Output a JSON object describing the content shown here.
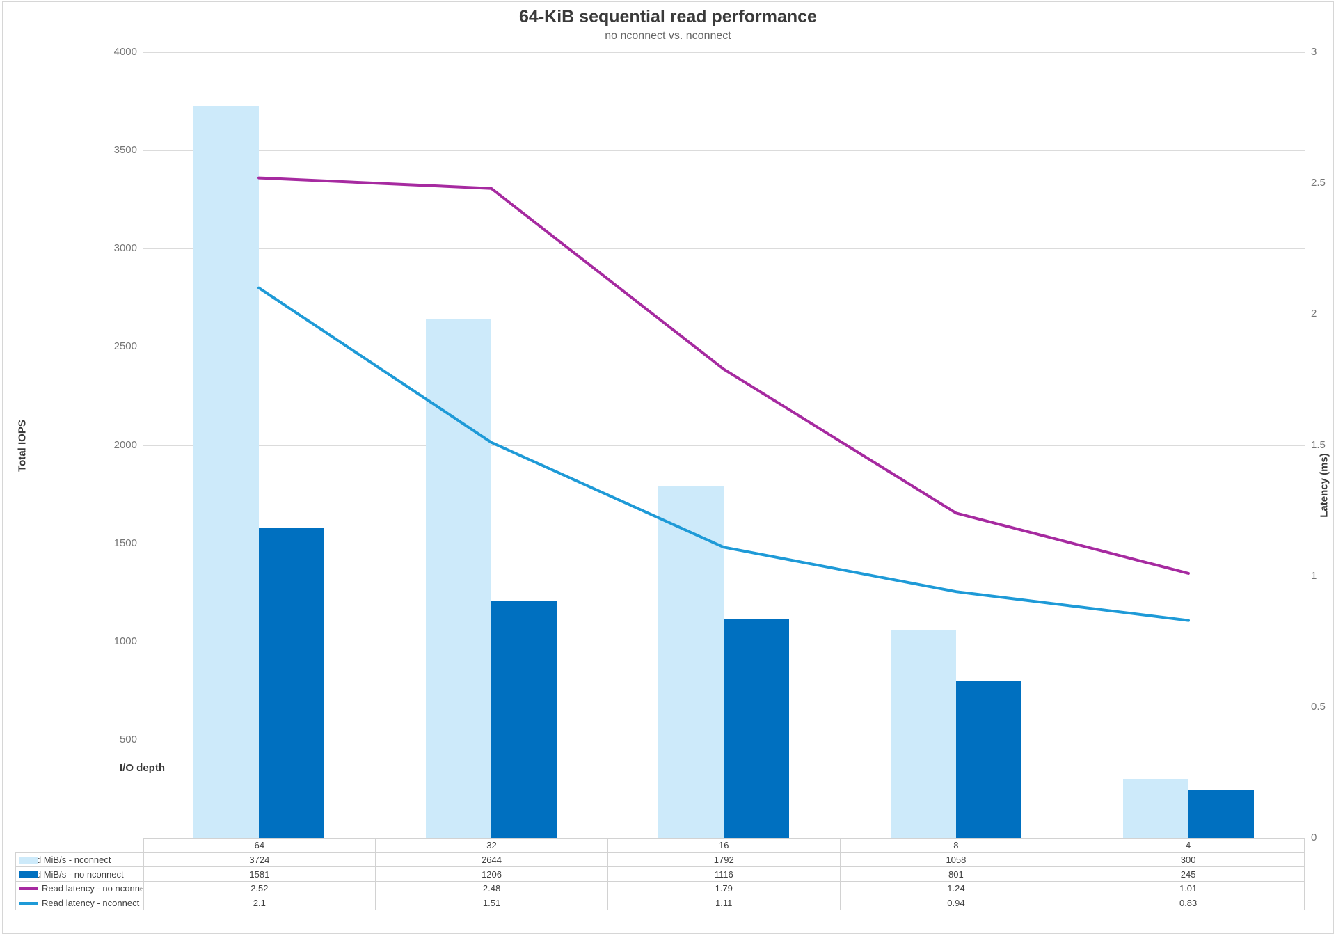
{
  "title": "64-KiB sequential read performance",
  "subtitle": "no nconnect vs. nconnect",
  "left_axis": {
    "title": "Total IOPS",
    "ticks": [
      "4000",
      "3500",
      "3000",
      "2500",
      "2000",
      "1500",
      "1000",
      "500"
    ],
    "min": 0,
    "max": 4000
  },
  "right_axis": {
    "title": "Latency (ms)",
    "ticks": [
      "3",
      "2.5",
      "2",
      "1.5",
      "1",
      "0.5",
      "0"
    ],
    "min": 0,
    "max": 3
  },
  "x_axis": {
    "title": "I/O depth"
  },
  "colors": {
    "bar_nconnect": "#cdeafa",
    "bar_no_nconnect": "#0070c0",
    "line_no_nconnect": "#a62aa0",
    "line_nconnect": "#1e9ad7",
    "gridline": "#dbdbdb",
    "table_border": "#d2d2d2",
    "text": "#404040"
  },
  "chart_data": {
    "type": "combo-bar-line",
    "title": "64-KiB sequential read performance",
    "subtitle": "no nconnect vs. nconnect",
    "xlabel": "I/O depth",
    "ylabel_left": "Total IOPS",
    "ylabel_right": "Latency (ms)",
    "left_ylim": [
      0,
      4000
    ],
    "right_ylim": [
      0,
      3
    ],
    "grid": true,
    "legend_position": "bottom-table",
    "categories": [
      "64",
      "32",
      "16",
      "8",
      "4"
    ],
    "series": [
      {
        "name": "Read MiB/s - nconnect",
        "type": "bar",
        "axis": "left",
        "color": "#cdeafa",
        "values": [
          3724,
          2644,
          1792,
          1058,
          300
        ]
      },
      {
        "name": "Read MiB/s - no nconnect",
        "type": "bar",
        "axis": "left",
        "color": "#0070c0",
        "values": [
          1581,
          1206,
          1116,
          801,
          245
        ]
      },
      {
        "name": "Read latency - no nconnect",
        "type": "line",
        "axis": "right",
        "color": "#a62aa0",
        "values": [
          2.52,
          2.48,
          1.79,
          1.24,
          1.01
        ]
      },
      {
        "name": "Read latency - nconnect",
        "type": "line",
        "axis": "right",
        "color": "#1e9ad7",
        "values": [
          2.1,
          1.51,
          1.11,
          0.94,
          0.83
        ]
      }
    ]
  }
}
